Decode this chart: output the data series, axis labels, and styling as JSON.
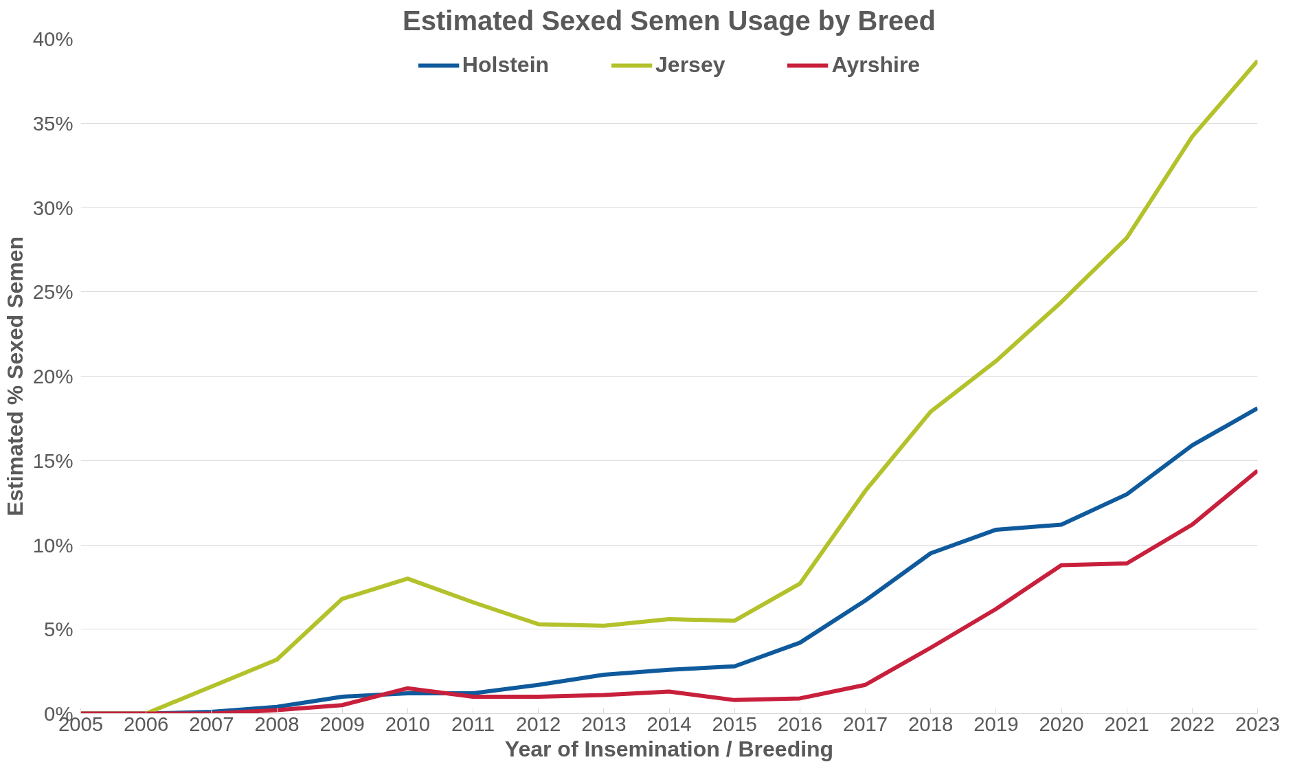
{
  "chart_data": {
    "type": "line",
    "title": "Estimated Sexed Semen Usage by Breed",
    "xlabel": "Year of Insemination / Breeding",
    "ylabel": "Estimated % Sexed Semen",
    "categories": [
      "2005",
      "2006",
      "2007",
      "2008",
      "2009",
      "2010",
      "2011",
      "2012",
      "2013",
      "2014",
      "2015",
      "2016",
      "2017",
      "2018",
      "2019",
      "2020",
      "2021",
      "2022",
      "2023"
    ],
    "series": [
      {
        "name": "Holstein",
        "color": "#0f5a9c",
        "values": [
          0,
          0,
          0.1,
          0.4,
          1.0,
          1.2,
          1.2,
          1.7,
          2.3,
          2.6,
          2.8,
          4.2,
          6.7,
          9.5,
          10.9,
          11.2,
          13.0,
          15.9,
          18.1
        ]
      },
      {
        "name": "Jersey",
        "color": "#b3c22b",
        "values": [
          0,
          0,
          1.6,
          3.2,
          6.8,
          8.0,
          6.6,
          5.3,
          5.2,
          5.6,
          5.5,
          7.7,
          13.2,
          17.9,
          20.9,
          24.4,
          28.2,
          34.2,
          38.7
        ]
      },
      {
        "name": "Ayrshire",
        "color": "#c8203c",
        "values": [
          0,
          0,
          0,
          0.2,
          0.5,
          1.5,
          1.0,
          1.0,
          1.1,
          1.3,
          0.8,
          0.9,
          1.7,
          3.9,
          6.2,
          8.8,
          8.9,
          11.2,
          14.4
        ]
      }
    ],
    "ylim": [
      0,
      40
    ],
    "yticks": [
      {
        "value": 0,
        "label": "0%"
      },
      {
        "value": 5,
        "label": "5%"
      },
      {
        "value": 10,
        "label": "10%"
      },
      {
        "value": 15,
        "label": "15%"
      },
      {
        "value": 20,
        "label": "20%"
      },
      {
        "value": 25,
        "label": "25%"
      },
      {
        "value": 30,
        "label": "30%"
      },
      {
        "value": 35,
        "label": "35%"
      },
      {
        "value": 40,
        "label": "40%"
      }
    ],
    "grid": "y",
    "legend": "top",
    "marker": "none",
    "line_style": "solid"
  }
}
